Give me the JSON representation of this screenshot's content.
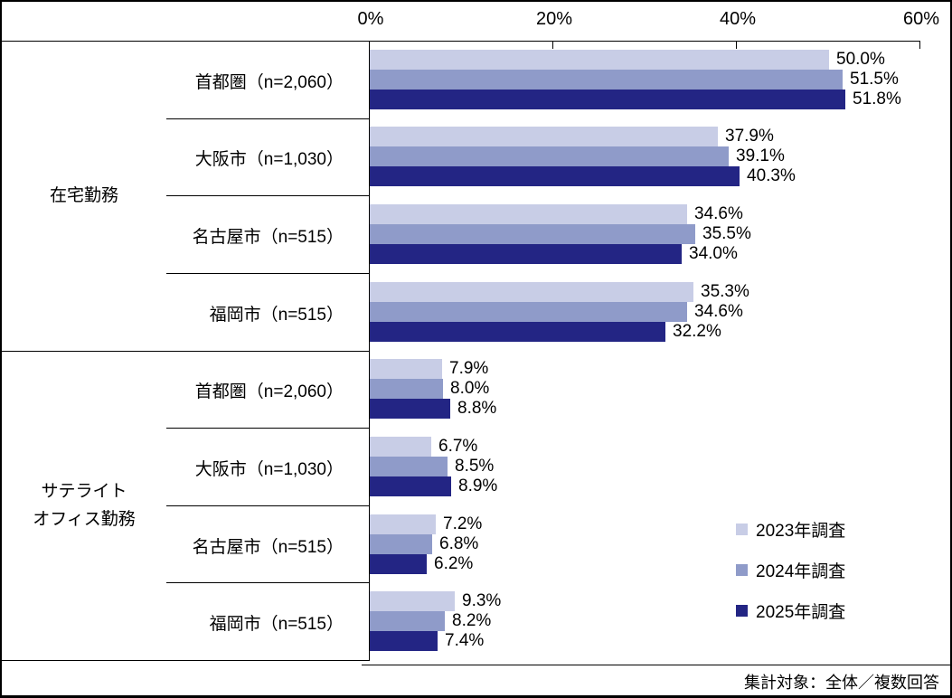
{
  "chart_data": {
    "type": "bar",
    "orientation": "horizontal",
    "title": "",
    "xlabel": "",
    "ylabel": "",
    "xlim": [
      0,
      60
    ],
    "grid": false,
    "x_ticks": [
      {
        "label": "0%",
        "value": 0
      },
      {
        "label": "20%",
        "value": 20
      },
      {
        "label": "40%",
        "value": 40
      },
      {
        "label": "60%",
        "value": 60
      }
    ],
    "series": [
      {
        "name": "2023年調査",
        "color": "#c8cde6"
      },
      {
        "name": "2024年調査",
        "color": "#8f9bc9"
      },
      {
        "name": "2025年調査",
        "color": "#232584"
      }
    ],
    "groups": [
      {
        "category": "在宅勤務",
        "category_lines": [
          "在宅勤務"
        ],
        "rows": [
          {
            "label": "首都圏（n=2,060）",
            "values": [
              50.0,
              51.5,
              51.8
            ],
            "value_labels": [
              "50.0%",
              "51.5%",
              "51.8%"
            ]
          },
          {
            "label": "大阪市（n=1,030）",
            "values": [
              37.9,
              39.1,
              40.3
            ],
            "value_labels": [
              "37.9%",
              "39.1%",
              "40.3%"
            ]
          },
          {
            "label": "名古屋市（n=515）",
            "values": [
              34.6,
              35.5,
              34.0
            ],
            "value_labels": [
              "34.6%",
              "35.5%",
              "34.0%"
            ]
          },
          {
            "label": "福岡市（n=515）",
            "values": [
              35.3,
              34.6,
              32.2
            ],
            "value_labels": [
              "35.3%",
              "34.6%",
              "32.2%"
            ]
          }
        ]
      },
      {
        "category": "サテライトオフィス勤務",
        "category_lines": [
          "サテライト",
          "オフィス勤務"
        ],
        "rows": [
          {
            "label": "首都圏（n=2,060）",
            "values": [
              7.9,
              8.0,
              8.8
            ],
            "value_labels": [
              "7.9%",
              "8.0%",
              "8.8%"
            ]
          },
          {
            "label": "大阪市（n=1,030）",
            "values": [
              6.7,
              8.5,
              8.9
            ],
            "value_labels": [
              "6.7%",
              "8.5%",
              "8.9%"
            ]
          },
          {
            "label": "名古屋市（n=515）",
            "values": [
              7.2,
              6.8,
              6.2
            ],
            "value_labels": [
              "7.2%",
              "6.8%",
              "6.2%"
            ]
          },
          {
            "label": "福岡市（n=515）",
            "values": [
              9.3,
              8.2,
              7.4
            ],
            "value_labels": [
              "9.3%",
              "8.2%",
              "7.4%"
            ]
          }
        ]
      }
    ],
    "legend": {
      "position": "right-bottom",
      "items": [
        "2023年調査",
        "2024年調査",
        "2025年調査"
      ]
    }
  },
  "footer": {
    "note": "集計対象：全体／複数回答"
  }
}
